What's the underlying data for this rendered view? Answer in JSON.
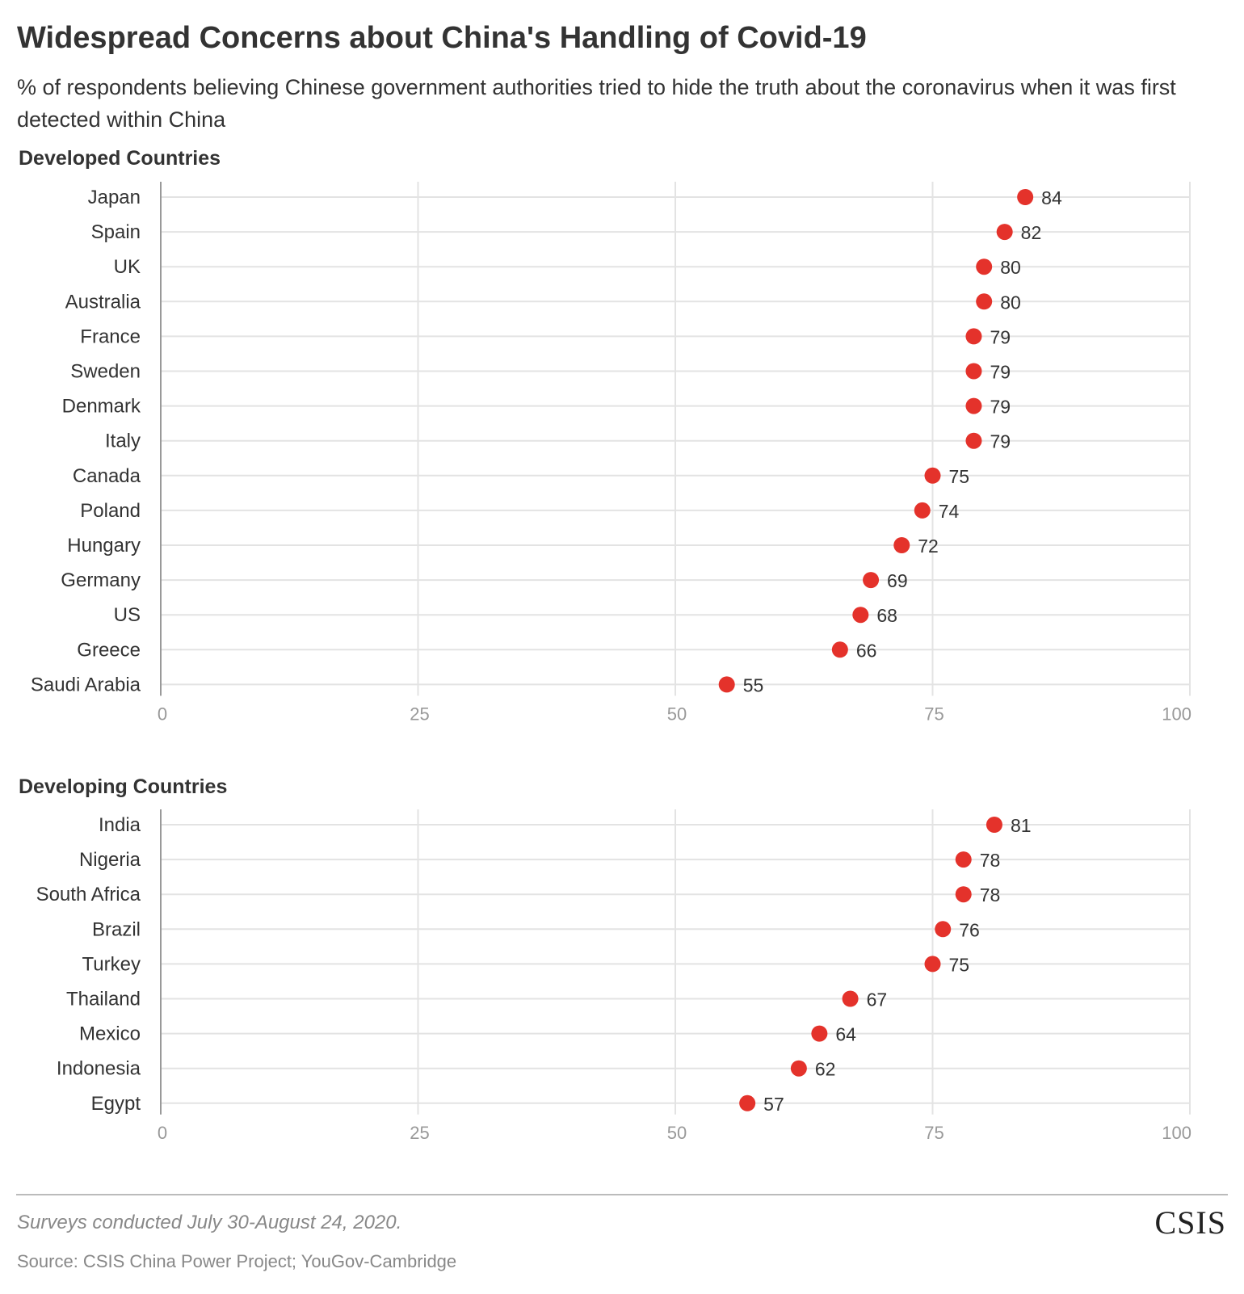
{
  "header": {
    "title": "Widespread Concerns about China's Handling of Covid-19",
    "subtitle": "% of respondents believing Chinese government authorities tried to hide the truth about the coronavirus when it was first detected within China"
  },
  "chart_data": [
    {
      "type": "scatter",
      "title": "Developed Countries",
      "categories": [
        "Japan",
        "Spain",
        "UK",
        "Australia",
        "France",
        "Sweden",
        "Denmark",
        "Italy",
        "Canada",
        "Poland",
        "Hungary",
        "Germany",
        "US",
        "Greece",
        "Saudi Arabia"
      ],
      "values": [
        84,
        82,
        80,
        80,
        79,
        79,
        79,
        79,
        75,
        74,
        72,
        69,
        68,
        66,
        55
      ],
      "xlim": [
        0,
        100
      ],
      "xticks": [
        0,
        25,
        50,
        75,
        100
      ],
      "xlabel": "",
      "ylabel": "",
      "grid": true,
      "color": "#e4322b"
    },
    {
      "type": "scatter",
      "title": "Developing Countries",
      "categories": [
        "India",
        "Nigeria",
        "South Africa",
        "Brazil",
        "Turkey",
        "Thailand",
        "Mexico",
        "Indonesia",
        "Egypt"
      ],
      "values": [
        81,
        78,
        78,
        76,
        75,
        67,
        64,
        62,
        57
      ],
      "xlim": [
        0,
        100
      ],
      "xticks": [
        0,
        25,
        50,
        75,
        100
      ],
      "xlabel": "",
      "ylabel": "",
      "grid": true,
      "color": "#e4322b"
    }
  ],
  "footer": {
    "note": "Surveys conducted July 30-August 24, 2020.",
    "source": "Source: CSIS China Power Project; YouGov-Cambridge",
    "logo": "CSIS"
  }
}
